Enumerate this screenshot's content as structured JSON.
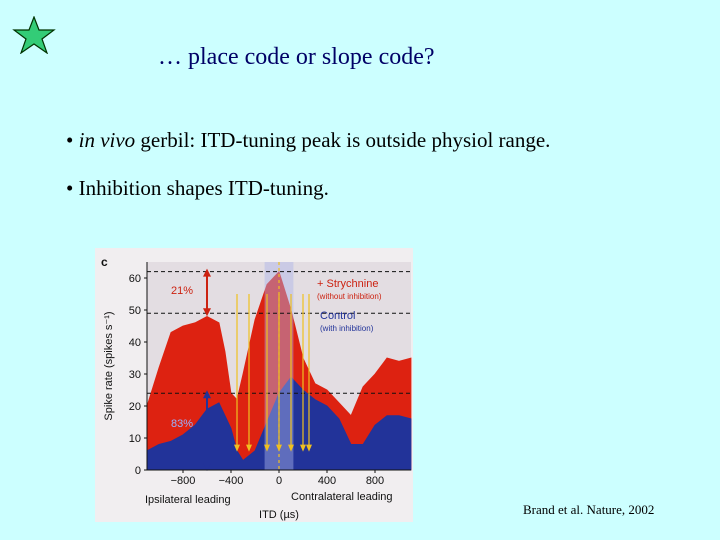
{
  "slide": {
    "title": "… place code or slope code?",
    "bullet1": {
      "prefix": "• ",
      "italic": "in vivo",
      "rest": " gerbil:  ITD-tuning peak is outside physiol range."
    },
    "bullet2": "• Inhibition shapes ITD-tuning.",
    "credit": "Brand et al.  Nature, 2002",
    "star_color": "#33cc77"
  },
  "chart_data": {
    "type": "area",
    "panel_label": "c",
    "ylabel": "Spike rate (spikes s⁻¹)",
    "xlabel": "ITD (µs)",
    "x_side_labels": [
      "Ipsilateral leading",
      "Contralateral leading"
    ],
    "ylim": [
      0,
      65
    ],
    "xlim": [
      -1100,
      1100
    ],
    "x_ticks": [
      "−800",
      "−400",
      "0",
      "400",
      "800"
    ],
    "y_ticks": [
      "0",
      "10",
      "20",
      "30",
      "40",
      "50",
      "60"
    ],
    "physiological_range": [
      -120,
      120
    ],
    "series": [
      {
        "name": "+ Strychnine",
        "sub": "(without inhibition)",
        "color": "#dd2211",
        "x": [
          -1100,
          -1000,
          -900,
          -800,
          -700,
          -600,
          -500,
          -450,
          -400,
          -350,
          -300,
          -200,
          -100,
          0,
          100,
          200,
          300,
          400,
          500,
          600,
          700,
          800,
          900,
          1000,
          1100
        ],
        "y": [
          20,
          32,
          43,
          45,
          46,
          48,
          46,
          37,
          24,
          22,
          30,
          47,
          58,
          62,
          50,
          35,
          27,
          25,
          21,
          17,
          26,
          30,
          35,
          34,
          35
        ]
      },
      {
        "name": "Control",
        "sub": "(with inhibition)",
        "color": "#223399",
        "x": [
          -1100,
          -1000,
          -900,
          -800,
          -700,
          -600,
          -500,
          -400,
          -350,
          -300,
          -200,
          -100,
          0,
          100,
          200,
          300,
          400,
          500,
          600,
          700,
          800,
          900,
          1000,
          1100
        ],
        "y": [
          6,
          8,
          9,
          11,
          14,
          19,
          21,
          13,
          6,
          3,
          6,
          15,
          24,
          29,
          25,
          22,
          20,
          16,
          8,
          8,
          14,
          17,
          17,
          16
        ]
      }
    ],
    "annotations": {
      "strychnine_percent": "21%",
      "control_percent": "83%"
    }
  }
}
